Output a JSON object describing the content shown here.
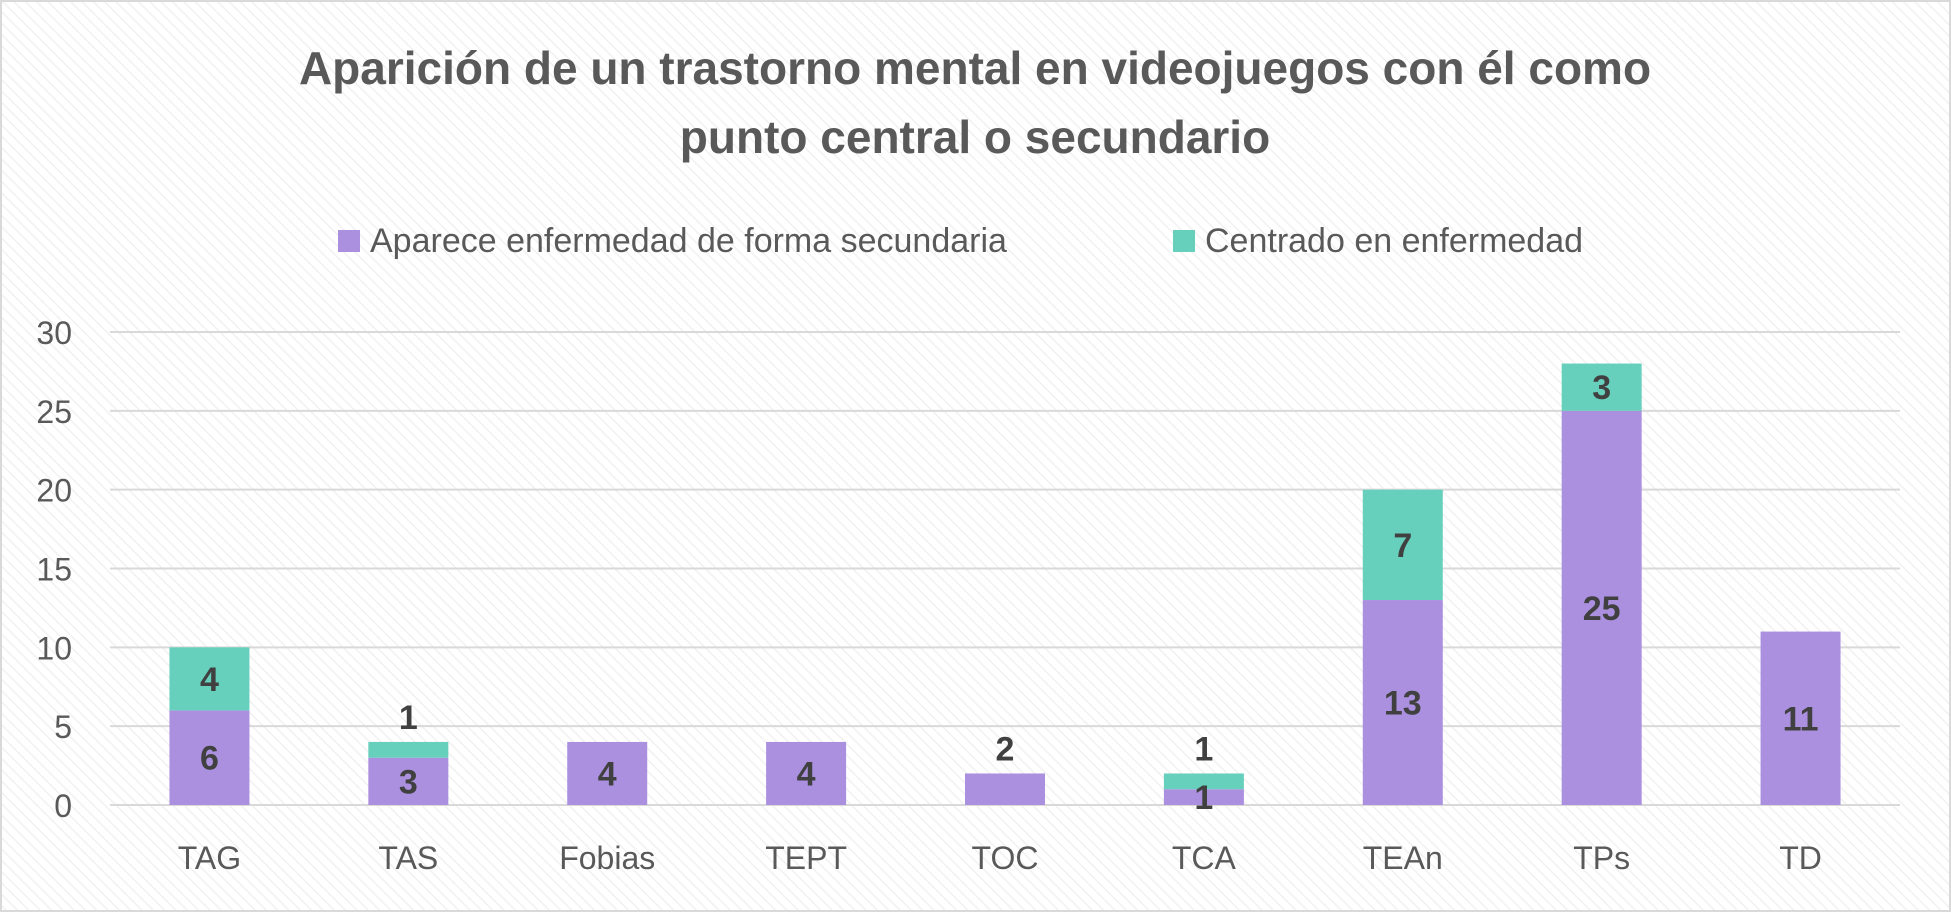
{
  "chart_data": {
    "type": "bar",
    "stacked": true,
    "title": "Aparición de un trastorno mental en videojuegos con él como punto central o secundario",
    "title_lines": [
      "Aparición de un trastorno mental en videojuegos con él como",
      "punto central o secundario"
    ],
    "xlabel": "",
    "ylabel": "",
    "categories": [
      "TAG",
      "TAS",
      "Fobias",
      "TEPT",
      "TOC",
      "TCA",
      "TEAn",
      "TPs",
      "TD"
    ],
    "series": [
      {
        "name": "Aparece enfermedad de forma secundaria",
        "color": "#ab90e0",
        "values": [
          6,
          3,
          4,
          4,
          2,
          1,
          13,
          25,
          11
        ]
      },
      {
        "name": "Centrado en enfermedad",
        "color": "#66d0bd",
        "values": [
          4,
          1,
          0,
          0,
          0,
          1,
          7,
          3,
          0
        ]
      }
    ],
    "ylim": [
      0,
      30
    ],
    "yticks": [
      "0",
      "5",
      "10",
      "15",
      "20",
      "25",
      "30"
    ],
    "grid": true,
    "legend_position": "top"
  }
}
